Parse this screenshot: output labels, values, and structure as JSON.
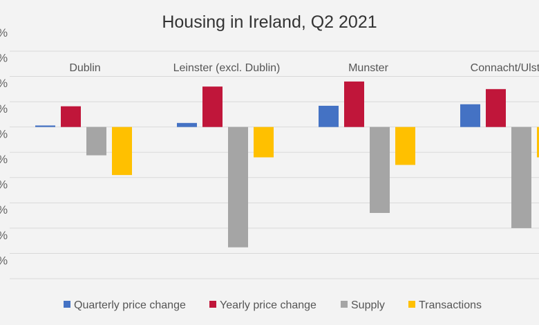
{
  "chart_data": {
    "type": "bar",
    "title": "Housing in Ireland, Q2 2021",
    "categories": [
      "Dublin",
      "Leinster (excl. Dublin)",
      "Munster",
      "Connacht/Ulster"
    ],
    "series": [
      {
        "name": "Quarterly price change",
        "color": "#4472c4",
        "values": [
          0.3,
          0.8,
          4.2,
          4.5
        ]
      },
      {
        "name": "Yearly price change",
        "color": "#c0163a",
        "values": [
          4.1,
          8.0,
          9.0,
          7.5
        ]
      },
      {
        "name": "Supply",
        "color": "#a5a5a5",
        "values": [
          -5.6,
          -23.8,
          -17.0,
          -20.0
        ]
      },
      {
        "name": "Transactions",
        "color": "#ffc000",
        "values": [
          -9.5,
          -6.0,
          -7.5,
          -6.0
        ]
      }
    ],
    "ylim": [
      -30,
      15
    ],
    "y_tick_step": 5,
    "y_tick_labels_visible": [
      "%",
      "%",
      "%",
      "%",
      "%",
      "%",
      "%",
      "%",
      "%",
      "%"
    ],
    "grid": true,
    "legend": "bottom",
    "ylabel": "",
    "xlabel": ""
  }
}
